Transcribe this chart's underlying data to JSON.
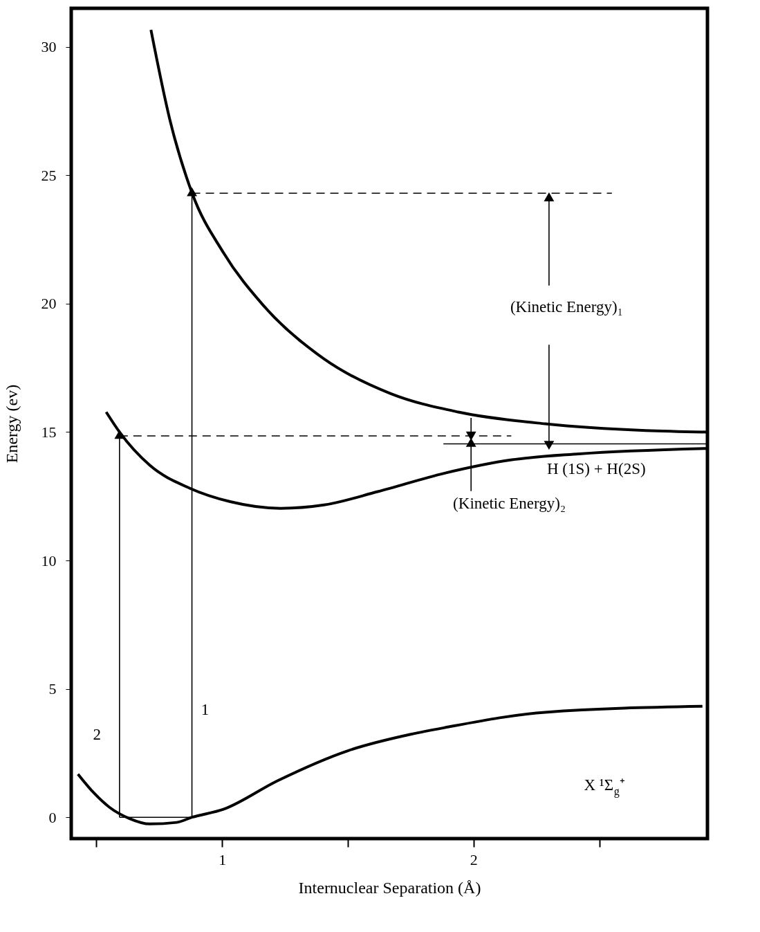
{
  "chart_data": {
    "type": "line",
    "xlabel": "Internuclear Separation (Å)",
    "ylabel": "Energy (ev)",
    "xlim": [
      0.4,
      2.93
    ],
    "ylim": [
      -0.83,
      31.5
    ],
    "xticks": [
      {
        "value": 0.5,
        "label": null
      },
      1,
      {
        "value": 1.5,
        "label": null
      },
      2,
      {
        "value": 2.5,
        "label": null
      }
    ],
    "yticks": [
      0,
      5,
      10,
      15,
      20,
      25,
      30
    ],
    "grid": false,
    "series": [
      {
        "color": "#000000",
        "x": [
          0.427,
          0.49,
          0.552,
          0.632,
          0.712,
          0.819,
          0.88,
          1.005,
          1.22,
          1.5,
          1.75,
          1.885,
          2.285,
          2.91
        ],
        "values": [
          1.68,
          0.95,
          0.39,
          -0.05,
          -0.26,
          -0.2,
          0.0,
          0.31,
          1.42,
          2.59,
          3.23,
          3.49,
          4.09,
          4.32
        ]
      },
      {
        "color": "#000000",
        "x": [
          0.539,
          0.592,
          0.712,
          0.872,
          1.032,
          1.232,
          1.405,
          1.619,
          1.885,
          2.152,
          2.419,
          2.925
        ],
        "values": [
          15.78,
          15.0,
          13.71,
          12.81,
          12.29,
          12.03,
          12.16,
          12.68,
          13.4,
          13.92,
          14.15,
          14.36
        ]
      },
      {
        "color": "#000000",
        "x": [
          0.717,
          0.792,
          0.88,
          1.005,
          1.165,
          1.405,
          1.672,
          1.939,
          2.285,
          2.685,
          2.925
        ],
        "values": [
          30.66,
          27.17,
          24.32,
          21.99,
          19.92,
          17.85,
          16.49,
          15.78,
          15.32,
          15.06,
          15.0
        ]
      },
      {
        "color": "#000000",
        "line_style": "dashed",
        "x": [
          0.88,
          2.55
        ],
        "values": [
          24.3,
          24.3
        ]
      },
      {
        "color": "#000000",
        "line_style": "dashed",
        "x": [
          0.592,
          2.15
        ],
        "values": [
          14.85,
          14.85
        ]
      },
      {
        "color": "#000000",
        "x": [
          1.88,
          2.93
        ],
        "values": [
          14.54,
          14.54
        ]
      },
      {
        "color": "#000000",
        "x": [
          0.592,
          0.88
        ],
        "values": [
          0.0,
          0.0
        ]
      },
      {
        "color": "#000000",
        "x": [
          0.592,
          0.592
        ],
        "values": [
          0.0,
          14.85
        ]
      },
      {
        "color": "#000000",
        "x": [
          0.88,
          0.88
        ],
        "values": [
          0.0,
          24.3
        ]
      },
      {
        "color": "#000000",
        "x": [
          2.3,
          2.3
        ],
        "values": [
          20.7,
          24.1
        ]
      },
      {
        "color": "#000000",
        "x": [
          2.3,
          2.3
        ],
        "values": [
          18.4,
          14.54
        ]
      },
      {
        "color": "#000000",
        "x": [
          1.99,
          1.99
        ],
        "values": [
          15.55,
          14.9
        ]
      },
      {
        "color": "#000000",
        "x": [
          1.99,
          1.99
        ],
        "values": [
          12.7,
          14.54
        ]
      }
    ],
    "annotations": [
      "(Kinetic Energy)₁",
      "H (1S) + H(2S)",
      "(Kinetic Energy)₂",
      "X ¹Σ$_{g}$⁺",
      "1",
      "2"
    ]
  }
}
